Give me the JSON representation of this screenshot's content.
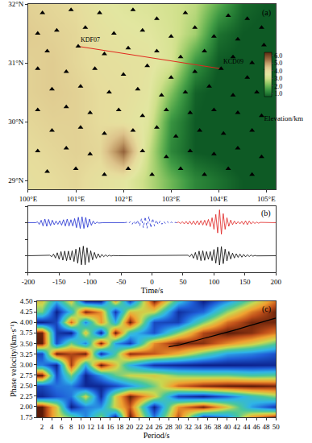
{
  "chart_data": [
    {
      "type": "map",
      "label": "(a)",
      "xlim": [
        100,
        105.2
      ],
      "ylim": [
        28.85,
        32
      ],
      "xticks": [
        {
          "value": 100,
          "label": "100°E"
        },
        {
          "value": 101,
          "label": "101°E"
        },
        {
          "value": 102,
          "label": "102°E"
        },
        {
          "value": 103,
          "label": "103°E"
        },
        {
          "value": 104,
          "label": "104°E"
        },
        {
          "value": 105,
          "label": "105°E"
        }
      ],
      "yticks": [
        {
          "value": 29,
          "label": "29°N"
        },
        {
          "value": 30,
          "label": "30°N"
        },
        {
          "value": 31,
          "label": "31°N"
        },
        {
          "value": 32,
          "label": "32°N"
        }
      ],
      "elevation": {
        "x": [
          100,
          100.5,
          101,
          101.5,
          102,
          102.5,
          103,
          103.5,
          104,
          104.5,
          105
        ],
        "y": [
          29,
          29.5,
          30,
          30.5,
          31,
          31.5,
          32
        ],
        "z": [
          [
            3.9,
            4.0,
            4.1,
            3.8,
            3.6,
            2.8,
            2.0,
            1.2,
            0.9,
            0.6,
            0.5
          ],
          [
            4.0,
            4.1,
            4.2,
            4.1,
            5.6,
            3.0,
            1.2,
            0.6,
            0.5,
            0.4,
            0.4
          ],
          [
            4.1,
            4.2,
            4.2,
            4.0,
            3.8,
            3.4,
            1.4,
            0.6,
            0.5,
            0.4,
            0.4
          ],
          [
            4.2,
            4.3,
            4.2,
            4.0,
            3.9,
            3.6,
            2.2,
            0.7,
            0.5,
            0.4,
            0.4
          ],
          [
            4.2,
            4.3,
            4.1,
            3.9,
            3.8,
            3.7,
            3.2,
            1.4,
            0.6,
            0.5,
            0.4
          ],
          [
            4.3,
            4.2,
            4.1,
            3.8,
            3.6,
            3.5,
            3.2,
            2.5,
            0.9,
            0.6,
            0.5
          ],
          [
            4.2,
            4.1,
            4.0,
            3.6,
            3.4,
            3.3,
            3.1,
            2.8,
            1.8,
            0.8,
            0.6
          ]
        ],
        "colorbar_title": "Elevation/km",
        "colorbar_range": [
          0.6,
          6.4
        ],
        "colorbar_ticks": [
          {
            "value": 1,
            "label": "1.0"
          },
          {
            "value": 2,
            "label": "2.0"
          },
          {
            "value": 3,
            "label": "3.0"
          },
          {
            "value": 4,
            "label": "4.0"
          },
          {
            "value": 5,
            "label": "5.0"
          },
          {
            "value": 6,
            "label": "6.0"
          }
        ]
      },
      "stations": {
        "color": "#000000",
        "marker": "triangle-up",
        "x": [
          100.3,
          100.9,
          101.5,
          102.2,
          102.7,
          103.3,
          103.5,
          104.2,
          104.6,
          104.9,
          100.2,
          100.6,
          101.2,
          101.8,
          102.4,
          103.0,
          103.9,
          104.4,
          104.95,
          100.4,
          101.6,
          102.1,
          102.7,
          103.2,
          103.7,
          104.3,
          104.7,
          100.2,
          100.8,
          101.4,
          102.0,
          102.5,
          103.0,
          103.5,
          104.6,
          105.0,
          100.5,
          101.1,
          101.7,
          102.3,
          102.8,
          103.3,
          103.8,
          104.3,
          104.8,
          100.2,
          100.8,
          101.3,
          101.9,
          102.4,
          102.9,
          103.4,
          103.9,
          104.4,
          104.9,
          100.5,
          101.1,
          101.6,
          102.2,
          102.7,
          103.1,
          103.6,
          104.1,
          104.7,
          100.2,
          100.8,
          101.3,
          102.4,
          102.9,
          103.4,
          103.9,
          104.4,
          104.9,
          100.4,
          101.0,
          101.6,
          102.1,
          102.6,
          103.2,
          103.7,
          104.2,
          104.7
        ],
        "y": [
          31.85,
          31.9,
          31.85,
          31.9,
          31.75,
          31.85,
          31.6,
          31.8,
          31.75,
          31.6,
          31.5,
          31.55,
          31.6,
          31.5,
          31.55,
          31.45,
          31.45,
          31.4,
          31.3,
          31.2,
          31.15,
          31.25,
          31.2,
          31.1,
          31.2,
          31.1,
          31.0,
          30.9,
          30.85,
          30.9,
          30.8,
          30.95,
          30.75,
          30.85,
          30.75,
          30.9,
          30.55,
          30.6,
          30.5,
          30.55,
          30.45,
          30.5,
          30.6,
          30.45,
          30.5,
          30.2,
          30.25,
          30.15,
          30.2,
          30.1,
          30.2,
          30.15,
          30.2,
          30.15,
          30.1,
          29.85,
          29.9,
          29.8,
          29.85,
          29.9,
          29.75,
          29.85,
          29.8,
          29.85,
          29.5,
          29.55,
          29.45,
          29.5,
          29.4,
          29.5,
          29.45,
          29.55,
          29.4,
          29.15,
          29.2,
          29.1,
          29.2,
          29.1,
          29.2,
          29.1,
          29.2,
          29.1
        ]
      },
      "labeled_stations": [
        {
          "label": "KDF07",
          "x": 101.05,
          "y": 31.28
        },
        {
          "label": "KCD09",
          "x": 104.05,
          "y": 30.9
        }
      ],
      "path": {
        "color": "#e0281e"
      }
    },
    {
      "type": "line",
      "label": "(b)",
      "x_label": "Time/s",
      "xlim": [
        -200,
        200
      ],
      "xticks": [
        -200,
        -150,
        -100,
        -50,
        0,
        50,
        100,
        150,
        200
      ],
      "ylim": [
        -2,
        2
      ],
      "yticks": [
        -2,
        -1,
        0,
        1,
        2
      ],
      "tick_labels": "x",
      "series": [
        {
          "color": "#1f2fd0",
          "line_style": "solid",
          "x": [
            -200,
            -188,
            -185,
            -182,
            -179,
            -176,
            -173,
            -170,
            -167,
            -164,
            -161,
            -158,
            -155,
            -152,
            -149,
            -146,
            -143,
            -140,
            -137,
            -134,
            -131,
            -128,
            -125,
            -122,
            -119,
            -116,
            -113,
            -110,
            -107,
            -104,
            -101,
            -98,
            -95,
            -92,
            -89,
            -86,
            -80,
            -44
          ],
          "values": [
            1,
            1,
            1.05,
            0.9,
            1.15,
            0.8,
            1.22,
            0.78,
            1.2,
            0.82,
            1.15,
            0.88,
            1.1,
            0.9,
            1.12,
            0.85,
            1.18,
            0.8,
            1.22,
            0.8,
            1.18,
            0.8,
            1.25,
            0.7,
            1.33,
            0.65,
            1.36,
            0.65,
            1.32,
            0.72,
            1.22,
            0.84,
            1.1,
            0.93,
            1.04,
            0.98,
            1,
            1
          ]
        },
        {
          "color": "#1f2fd0",
          "line_style": "dotted",
          "x": [
            -44,
            -41,
            -38,
            -35,
            -32,
            -29,
            -26,
            -23,
            -20,
            -17,
            -14,
            -11,
            -8,
            -5,
            -2,
            1,
            4,
            7,
            10,
            13,
            16,
            19,
            22,
            25,
            28,
            31,
            34,
            37,
            40
          ],
          "values": [
            1,
            1.03,
            0.95,
            1.07,
            0.91,
            1.1,
            0.88,
            1.15,
            0.8,
            1.25,
            0.7,
            1.35,
            0.67,
            1.38,
            0.7,
            1.25,
            0.8,
            1.15,
            0.88,
            1.1,
            0.91,
            1.08,
            0.93,
            1.06,
            0.95,
            1.04,
            0.97,
            1.02,
            1
          ]
        },
        {
          "color": "#e0201e",
          "line_style": "solid",
          "x": [
            40,
            43,
            46,
            49,
            52,
            55,
            58,
            61,
            64,
            67,
            70,
            73,
            76,
            79,
            82,
            85,
            88,
            91,
            94,
            97,
            100,
            103,
            106,
            109,
            112,
            115,
            118,
            121,
            124,
            127,
            130,
            133,
            136,
            139,
            142,
            145,
            148,
            151,
            154,
            157,
            160,
            163,
            166,
            169,
            172,
            175,
            200
          ],
          "values": [
            1,
            1.04,
            0.95,
            1.06,
            0.93,
            1.08,
            0.92,
            1.09,
            0.9,
            1.1,
            0.89,
            1.12,
            0.88,
            1.13,
            0.86,
            1.15,
            0.83,
            1.2,
            0.76,
            1.3,
            0.6,
            1.5,
            0.38,
            1.78,
            0.3,
            1.55,
            0.6,
            1.3,
            0.78,
            1.16,
            0.88,
            1.1,
            0.92,
            1.07,
            0.93,
            1.08,
            0.9,
            1.12,
            0.88,
            1.1,
            0.92,
            1.06,
            0.95,
            1.04,
            0.97,
            1.02,
            1
          ]
        },
        {
          "color": "#000000",
          "line_style": "solid",
          "x": [
            -200,
            -165,
            -162,
            -159,
            -156,
            -153,
            -150,
            -147,
            -144,
            -141,
            -138,
            -135,
            -132,
            -129,
            -126,
            -123,
            -120,
            -117,
            -114,
            -111,
            -108,
            -105,
            -102,
            -99,
            -96,
            -93,
            -90,
            -87,
            -84,
            -81,
            -78,
            -75,
            -72,
            -69,
            -66,
            -63,
            -55,
            55,
            58,
            61,
            64,
            67,
            70,
            73,
            76,
            79,
            82,
            85,
            88,
            91,
            94,
            97,
            100,
            103,
            106,
            109,
            112,
            115,
            118,
            121,
            124,
            127,
            130,
            133,
            136,
            139,
            142,
            145,
            148,
            151,
            154,
            157,
            160,
            163,
            166,
            169,
            200
          ],
          "values": [
            -1,
            -0.97,
            -1.06,
            -0.9,
            -1.14,
            -0.82,
            -1.22,
            -0.75,
            -1.27,
            -0.72,
            -1.3,
            -0.72,
            -1.26,
            -0.7,
            -1.35,
            -0.6,
            -1.45,
            -0.5,
            -1.55,
            -0.42,
            -1.55,
            -0.52,
            -1.4,
            -0.7,
            -1.25,
            -0.8,
            -1.16,
            -0.88,
            -1.1,
            -0.92,
            -1.06,
            -0.95,
            -1.04,
            -0.97,
            -1.02,
            -0.99,
            -1,
            -1,
            -0.97,
            -1.06,
            -0.9,
            -1.15,
            -0.8,
            -1.25,
            -0.72,
            -1.3,
            -0.7,
            -1.28,
            -0.75,
            -1.22,
            -0.75,
            -1.3,
            -0.62,
            -1.45,
            -0.48,
            -1.56,
            -0.45,
            -1.48,
            -0.6,
            -1.32,
            -0.75,
            -1.2,
            -0.84,
            -1.14,
            -0.88,
            -1.1,
            -0.9,
            -1.09,
            -0.92,
            -1.07,
            -0.94,
            -1.05,
            -0.96,
            -1.03,
            -0.98,
            -1.01,
            -1
          ]
        }
      ]
    },
    {
      "type": "heatmap",
      "label": "(c)",
      "x_label": "Period/s",
      "y_label": "Phase velocity/(km·s⁻¹)",
      "xlim": [
        1,
        50
      ],
      "xticks": [
        2,
        4,
        6,
        8,
        10,
        12,
        14,
        16,
        18,
        20,
        22,
        24,
        26,
        28,
        30,
        32,
        34,
        36,
        38,
        40,
        42,
        44,
        46,
        48,
        50
      ],
      "ylim": [
        1.75,
        4.5
      ],
      "yticks": [
        1.75,
        {
          "value": 2,
          "label": "2.00"
        },
        2.25,
        {
          "value": 2.5,
          "label": "2.50"
        },
        2.75,
        {
          "value": 3,
          "label": "3.00"
        },
        3.25,
        {
          "value": 3.5,
          "label": "3.50"
        },
        3.75,
        {
          "value": 4,
          "label": "4.00"
        },
        4.25,
        {
          "value": 4.5,
          "label": "4.50"
        }
      ],
      "cells": {
        "x": [
          2,
          5,
          8,
          11,
          14,
          17,
          20,
          25,
          30,
          35,
          40,
          45,
          50
        ],
        "y": [
          1.75,
          2.0,
          2.25,
          2.5,
          2.75,
          3.0,
          3.25,
          3.5,
          3.75,
          4.0,
          4.25,
          4.5
        ],
        "z": [
          [
            1,
            0.65,
            0.5,
            0.21,
            0.53,
            0,
            1,
            0.19,
            0.88,
            0.06,
            0.21,
            0.77,
            0.99
          ],
          [
            1,
            0.65,
            0,
            0.21,
            0.24,
            0.63,
            0.87,
            0.01,
            0.77,
            0.98,
            0.65,
            0.26,
            0.06
          ],
          [
            0.02,
            0.13,
            0.19,
            0.62,
            0.04,
            0.63,
            0.99,
            0.65,
            0.08,
            0.01,
            0.16,
            0.38,
            0.53
          ],
          [
            0.1,
            0.19,
            0.21,
            0.02,
            0.02,
            0.1,
            0.23,
            0.5,
            0.84,
            0.95,
            0.99,
            1,
            0.97
          ],
          [
            1,
            0.1,
            0.5,
            0.01,
            0.24,
            0.47,
            0.61,
            0.65,
            0.52,
            0.5,
            0.5,
            0.44,
            0.47
          ],
          [
            0.21,
            0.01,
            0.92,
            0.29,
            1,
            0.67,
            0.31,
            0.05,
            0.02,
            0,
            0,
            0.01,
            0.02
          ],
          [
            0.1,
            0.99,
            0.9,
            0.98,
            0.04,
            0.44,
            0.95,
            0.87,
            0.71,
            0.47,
            0.27,
            0.21,
            0.12
          ],
          [
            1,
            0.1,
            0.5,
            0.21,
            0.98,
            0.26,
            0.07,
            0.78,
            0.98,
            0.95,
            0.79,
            0.65,
            0.47
          ],
          [
            0.98,
            0.06,
            0,
            0.67,
            0.01,
            1,
            0.37,
            0.12,
            0.52,
            0.9,
            1,
            0.95,
            0.81
          ],
          [
            0,
            0.1,
            0.85,
            0.21,
            0.77,
            0.29,
            0.99,
            0.1,
            0.08,
            0.5,
            0.83,
            0.97,
            0.97
          ],
          [
            0.5,
            0,
            0.33,
            0.97,
            0.77,
            0.06,
            0.67,
            0.61,
            0.04,
            0.16,
            0.54,
            0.81,
            0.98
          ],
          [
            0.65,
            0.29,
            0.65,
            0.04,
            0.02,
            0.71,
            0.1,
            0.97,
            0.35,
            0,
            0.24,
            0.54,
            0.84
          ]
        ]
      },
      "series": [
        {
          "color": "#000000",
          "line_style": "solid",
          "x": [
            28,
            30,
            32,
            34,
            36,
            38,
            40,
            42,
            44,
            46,
            48,
            50
          ],
          "values": [
            3.42,
            3.46,
            3.52,
            3.58,
            3.64,
            3.7,
            3.76,
            3.83,
            3.9,
            3.97,
            4.04,
            4.1
          ]
        }
      ]
    }
  ]
}
